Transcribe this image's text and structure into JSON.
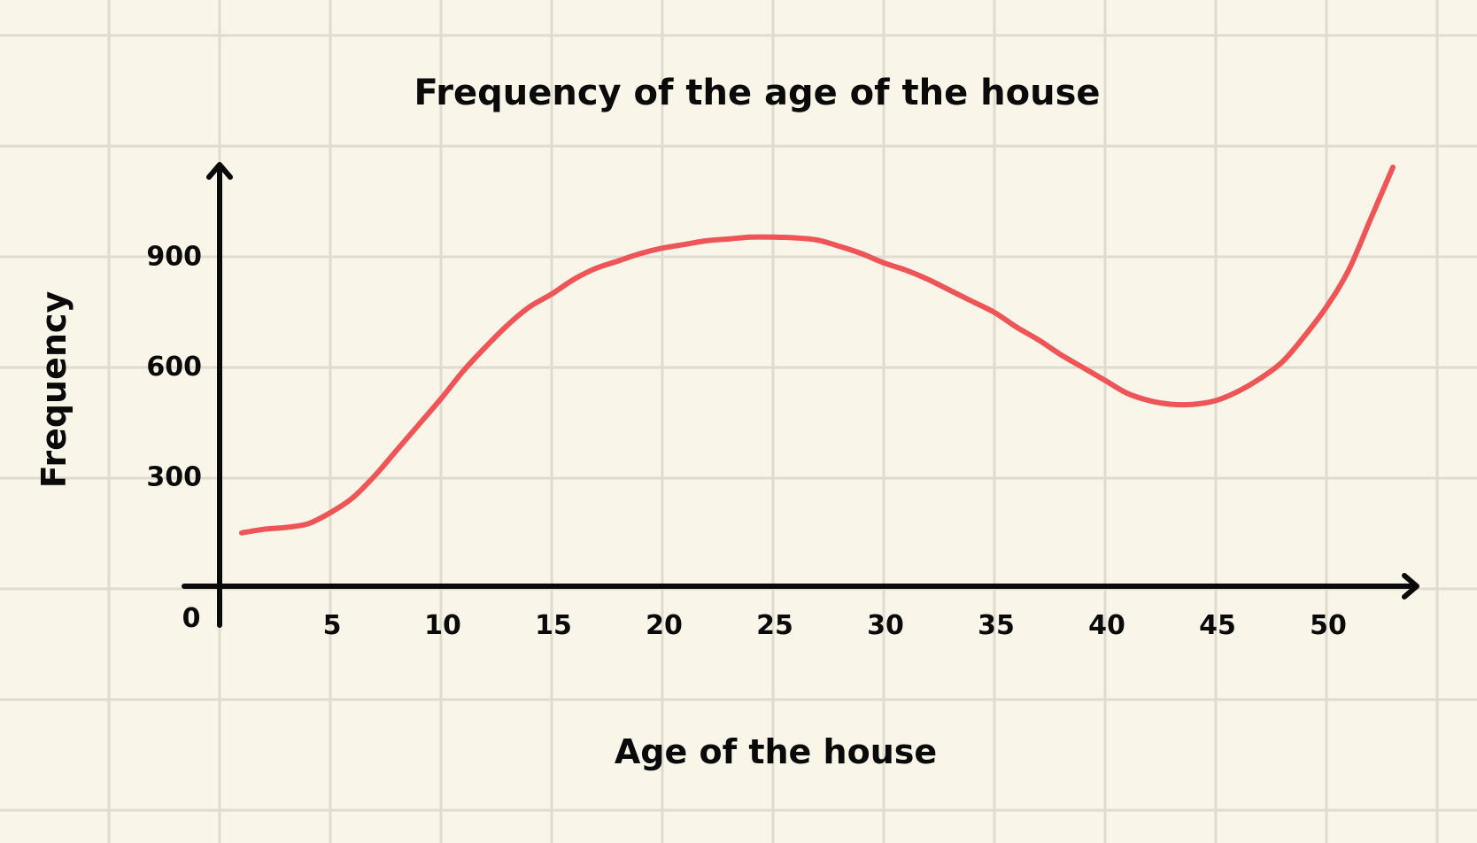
{
  "colors": {
    "background": "#f9f6e9",
    "grid": "#dedbd0",
    "axis": "#0a0a0a",
    "line": "#ef5457"
  },
  "chart_data": {
    "type": "line",
    "title": "Frequency of the age of the house",
    "xlabel": "Age of the house",
    "ylabel": "Frequency",
    "origin_label": "0",
    "x_ticks": [
      5,
      10,
      15,
      20,
      25,
      30,
      35,
      40,
      45,
      50
    ],
    "y_ticks": [
      300,
      600,
      900
    ],
    "xlim": [
      0,
      54
    ],
    "ylim": [
      0,
      1150
    ],
    "grid": true,
    "series": [
      {
        "color": "#ef5457",
        "x": [
          1,
          2,
          3,
          4,
          5,
          6,
          7,
          8,
          9,
          10,
          11,
          12,
          13,
          14,
          15,
          16,
          17,
          18,
          19,
          20,
          21,
          22,
          23,
          24,
          25,
          26,
          27,
          28,
          29,
          30,
          31,
          32,
          33,
          34,
          35,
          36,
          37,
          38,
          39,
          40,
          41,
          42,
          43,
          44,
          45,
          46,
          47,
          48,
          49,
          50,
          51,
          52,
          53
        ],
        "y": [
          145,
          155,
          160,
          170,
          200,
          240,
          300,
          370,
          440,
          510,
          585,
          650,
          710,
          760,
          795,
          835,
          865,
          885,
          905,
          920,
          930,
          940,
          945,
          950,
          950,
          948,
          942,
          925,
          905,
          880,
          860,
          835,
          805,
          775,
          745,
          705,
          670,
          630,
          595,
          560,
          525,
          505,
          495,
          495,
          505,
          530,
          565,
          610,
          680,
          760,
          860,
          1000,
          1140
        ]
      }
    ]
  }
}
